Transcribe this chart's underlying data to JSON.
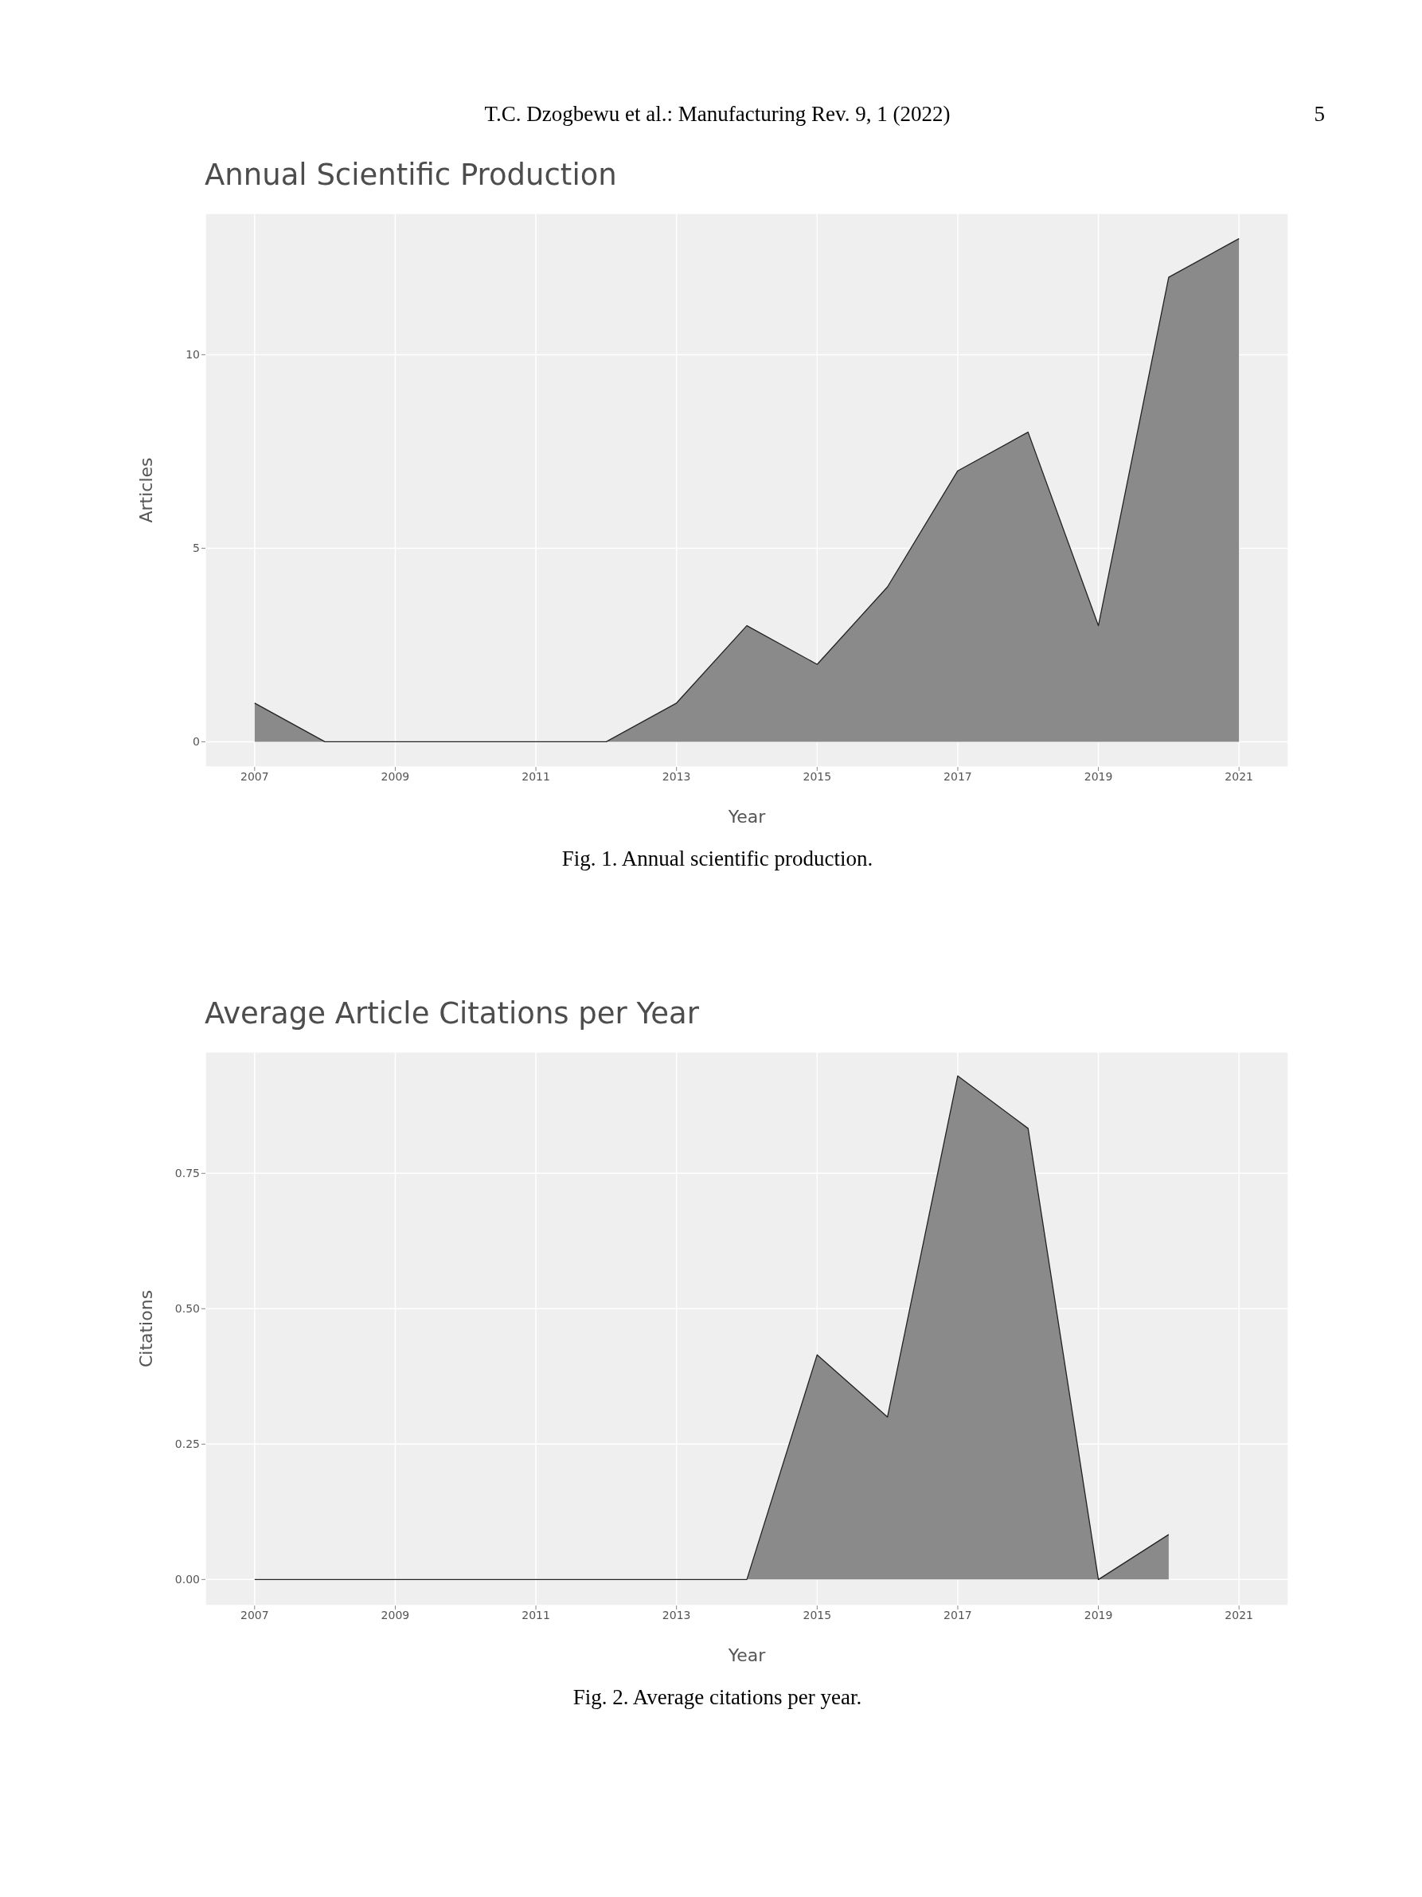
{
  "chart_data": [
    {
      "type": "area",
      "title": "Annual Scientific Production",
      "xlabel": "Year",
      "ylabel": "Articles",
      "annotations": [
        "T.C. Dzogbewu et al.: Manufacturing Rev. 9, 1 (2022)",
        "5",
        "Fig. 1. Annual scientific production."
      ],
      "x": [
        2007,
        2008,
        2009,
        2010,
        2011,
        2012,
        2013,
        2014,
        2015,
        2016,
        2017,
        2018,
        2019,
        2020,
        2021
      ],
      "series": [
        {
          "color": "#8a8a8a",
          "values": [
            1,
            0,
            0,
            0,
            0,
            0,
            1,
            3,
            2,
            4,
            7,
            8,
            3,
            12,
            13
          ]
        }
      ],
      "xlim": [
        2006.3,
        2021.7
      ],
      "xticks": [
        2007,
        2009,
        2011,
        2013,
        2015,
        2017,
        2019,
        2021
      ],
      "ylim": [
        -0.65,
        13.65
      ],
      "yticks": [
        0,
        5,
        10
      ],
      "grid": true,
      "legend": false
    },
    {
      "type": "area",
      "title": "Average Article Citations per Year",
      "xlabel": "Year",
      "ylabel": "Citations",
      "annotations": [
        "Fig. 2. Average citations per year."
      ],
      "x": [
        2007,
        2008,
        2009,
        2010,
        2011,
        2012,
        2013,
        2014,
        2015,
        2016,
        2017,
        2018,
        2019,
        2020
      ],
      "series": [
        {
          "color": "#8a8a8a",
          "values": [
            0,
            0,
            0,
            0,
            0,
            0,
            0,
            0,
            0.415,
            0.3,
            0.93,
            0.833,
            0,
            0.083
          ]
        }
      ],
      "xlim": [
        2006.3,
        2021.7
      ],
      "xticks": [
        2007,
        2009,
        2011,
        2013,
        2015,
        2017,
        2019,
        2021
      ],
      "ylim": [
        -0.048,
        0.974
      ],
      "yticks": [
        {
          "value": 0,
          "label": "0.00"
        },
        {
          "value": 0.25,
          "label": "0.25"
        },
        {
          "value": 0.5,
          "label": "0.50"
        },
        {
          "value": 0.75,
          "label": "0.75"
        }
      ],
      "grid": true,
      "legend": false
    }
  ]
}
